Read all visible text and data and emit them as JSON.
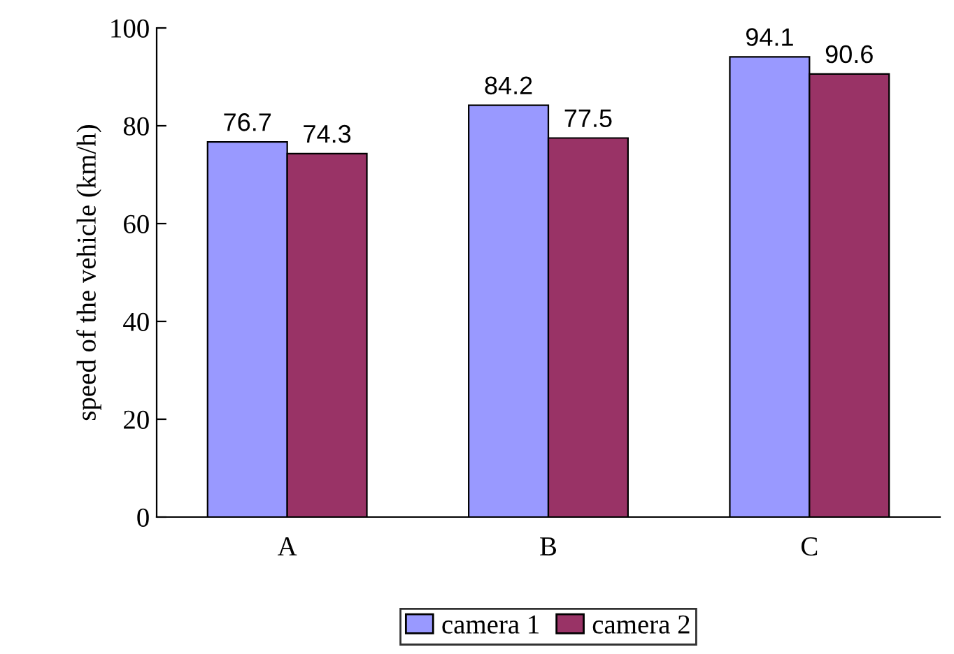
{
  "chart_data": {
    "type": "bar",
    "ylabel": "speed of the vehicle (km/h)",
    "categories": [
      "A",
      "B",
      "C"
    ],
    "series": [
      {
        "name": "camera 1",
        "color": "#9999ff",
        "values": [
          76.7,
          84.2,
          94.1
        ]
      },
      {
        "name": "camera 2",
        "color": "#993366",
        "values": [
          74.3,
          77.5,
          90.6
        ]
      }
    ],
    "ylim": [
      0,
      100
    ],
    "yticks": [
      0,
      20,
      40,
      60,
      80,
      100
    ],
    "grid": false,
    "legend": "bottom",
    "data_labels": true
  }
}
